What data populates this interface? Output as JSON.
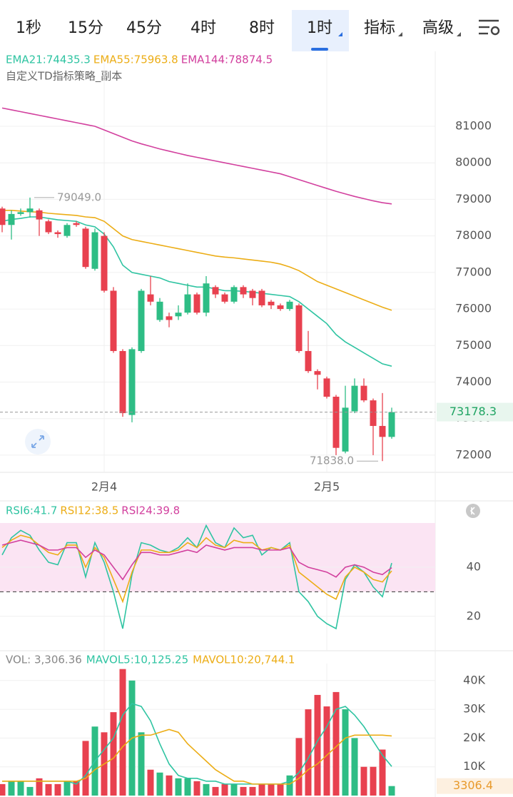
{
  "tabs": [
    "1秒",
    "15分",
    "45分",
    "4时",
    "8时",
    "1时",
    "指标",
    "高级"
  ],
  "active_tab": 5,
  "up_color": "#2ebd85",
  "down_color": "#e8414f",
  "main": {
    "subtitle": "自定义TD指标策略_副本",
    "categories": [
      null,
      null,
      null,
      null,
      null,
      null,
      null,
      null,
      null,
      null,
      null,
      "2月4",
      null,
      null,
      null,
      null,
      null,
      null,
      null,
      null,
      null,
      null,
      null,
      null,
      null,
      null,
      null,
      null,
      null,
      null,
      null,
      null,
      null,
      null,
      null,
      "2月5",
      null,
      null,
      null,
      null,
      null,
      null,
      null
    ],
    "open": [
      78750,
      78300,
      78600,
      78650,
      78700,
      78400,
      78100,
      78000,
      78350,
      78200,
      77100,
      78000,
      76500,
      74850,
      73100,
      74850,
      76400,
      75700,
      75800,
      75800,
      75900,
      76400,
      75900,
      76600,
      76400,
      76200,
      76600,
      76500,
      76500,
      76200,
      76100,
      76000,
      76100,
      74850,
      74300,
      74100,
      73600,
      72100,
      73200,
      73900,
      73500,
      72800,
      72500
    ],
    "high": [
      78800,
      78700,
      78750,
      79049,
      78750,
      78450,
      78150,
      78350,
      78400,
      78250,
      78200,
      78100,
      76600,
      74900,
      74950,
      76550,
      76900,
      76300,
      75900,
      76100,
      76700,
      76450,
      76900,
      76650,
      76450,
      76650,
      76650,
      76550,
      76550,
      76250,
      76150,
      76250,
      76150,
      75400,
      74350,
      74150,
      73650,
      73900,
      74100,
      74100,
      73550,
      73700,
      73300
    ],
    "low": [
      78100,
      77900,
      78550,
      78500,
      78000,
      78050,
      77950,
      77950,
      78250,
      77100,
      77050,
      76450,
      74800,
      73050,
      72900,
      74800,
      76100,
      75650,
      75500,
      75700,
      75850,
      75850,
      75800,
      76300,
      76150,
      76150,
      76300,
      76100,
      76050,
      76000,
      75950,
      75950,
      74800,
      74250,
      73800,
      73550,
      72000,
      72050,
      73150,
      73450,
      72000,
      71838,
      72450
    ],
    "close": [
      78300,
      78600,
      78650,
      78750,
      78450,
      78100,
      78050,
      78300,
      78300,
      77150,
      78100,
      76500,
      74850,
      73150,
      74900,
      76500,
      76200,
      76200,
      75700,
      75900,
      76400,
      75900,
      76700,
      76400,
      76200,
      76600,
      76400,
      76300,
      76100,
      76100,
      76000,
      76200,
      74850,
      74300,
      74200,
      73600,
      72200,
      73300,
      73900,
      73500,
      72800,
      72500,
      73178.3
    ],
    "series": [
      {
        "name": "EMA21:74435.3",
        "color": "#2fc4a2",
        "values": [
          78400,
          78450,
          78480,
          78520,
          78520,
          78480,
          78440,
          78420,
          78400,
          78300,
          78250,
          78050,
          77700,
          77200,
          77000,
          76950,
          76900,
          76850,
          76750,
          76700,
          76650,
          76600,
          76600,
          76550,
          76500,
          76500,
          76480,
          76460,
          76430,
          76400,
          76370,
          76340,
          76200,
          76000,
          75800,
          75600,
          75300,
          75100,
          74950,
          74800,
          74650,
          74500,
          74435.3
        ]
      },
      {
        "name": "EMA55:75963.8",
        "color": "#ecad16",
        "values": [
          78700,
          78700,
          78680,
          78660,
          78650,
          78620,
          78600,
          78580,
          78560,
          78520,
          78500,
          78400,
          78200,
          78000,
          77900,
          77850,
          77800,
          77750,
          77700,
          77650,
          77600,
          77550,
          77500,
          77450,
          77420,
          77400,
          77370,
          77340,
          77310,
          77280,
          77230,
          77150,
          77050,
          76900,
          76750,
          76650,
          76550,
          76450,
          76350,
          76250,
          76150,
          76050,
          75963.8
        ]
      },
      {
        "name": "EMA144:78874.5",
        "color": "#d2409e",
        "values": [
          81500,
          81450,
          81400,
          81350,
          81300,
          81250,
          81200,
          81150,
          81100,
          81050,
          81000,
          80900,
          80800,
          80700,
          80600,
          80520,
          80450,
          80380,
          80320,
          80260,
          80200,
          80150,
          80100,
          80050,
          80000,
          79950,
          79900,
          79850,
          79800,
          79750,
          79700,
          79620,
          79540,
          79460,
          79380,
          79300,
          79220,
          79150,
          79080,
          79020,
          78960,
          78910,
          78874.5
        ]
      }
    ],
    "ylim": [
      71530,
      83050
    ],
    "yticks": [
      72000,
      73000,
      74000,
      75000,
      76000,
      77000,
      78000,
      79000,
      80000,
      81000
    ],
    "last": 73178.3,
    "high_label": "79049.0",
    "low_label": "71838.0"
  },
  "rsi": {
    "series": [
      {
        "name": "RSI6:41.7",
        "color": "#2fc4a2",
        "values": [
          45,
          52,
          55,
          53,
          47,
          42,
          41,
          50,
          50,
          36,
          50,
          42,
          30,
          15,
          37,
          50,
          49,
          47,
          46,
          48,
          52,
          48,
          57,
          50,
          48,
          56,
          52,
          53,
          45,
          48,
          47,
          50,
          30,
          26,
          20,
          17,
          15,
          35,
          41,
          38,
          32,
          28,
          41.7
        ]
      },
      {
        "name": "RSI12:38.5",
        "color": "#ecad16",
        "values": [
          48,
          51,
          53,
          52,
          49,
          46,
          45,
          49,
          49,
          40,
          48,
          44,
          35,
          26,
          38,
          47,
          47,
          46,
          46,
          47,
          50,
          48,
          52,
          49,
          48,
          51,
          50,
          50,
          47,
          48,
          47,
          49,
          38,
          35,
          32,
          29,
          27,
          36,
          40,
          38,
          35,
          34,
          38.5
        ]
      },
      {
        "name": "RSI24:39.8",
        "color": "#d2409e",
        "values": [
          49,
          50,
          51,
          50,
          49,
          47,
          47,
          48,
          48,
          44,
          47,
          45,
          40,
          35,
          41,
          46,
          46,
          45,
          45,
          46,
          47,
          46,
          49,
          48,
          47,
          48,
          48,
          48,
          47,
          47,
          47,
          48,
          42,
          40,
          39,
          38,
          36,
          40,
          41,
          40,
          38,
          37,
          39.8
        ]
      }
    ],
    "ylim": [
      6,
      58
    ],
    "yticks": [
      20,
      40
    ],
    "band": [
      30,
      70
    ],
    "level": 30
  },
  "volume": {
    "legend": "VOL: 3,306.36",
    "values": [
      4000,
      5000,
      5000,
      3000,
      6000,
      4000,
      4000,
      5000,
      5000,
      19000,
      24000,
      22000,
      29000,
      44000,
      40000,
      22000,
      9000,
      8000,
      7000,
      6000,
      6000,
      5000,
      4000,
      3000,
      4000,
      4000,
      3000,
      3000,
      4000,
      4000,
      4000,
      7000,
      20000,
      30000,
      35000,
      31000,
      36000,
      30000,
      20000,
      10000,
      10000,
      16000,
      3306.36
    ],
    "series": [
      {
        "name": "MAVOL5:10,125.25",
        "color": "#2fc4a2",
        "values": [
          5000,
          5000,
          5000,
          5000,
          5000,
          5000,
          5000,
          5000,
          4000,
          7000,
          12000,
          16000,
          20000,
          28000,
          32000,
          31000,
          26000,
          18000,
          11000,
          7000,
          6000,
          6000,
          5000,
          5000,
          4000,
          4000,
          4000,
          4000,
          4000,
          4000,
          4000,
          5000,
          8000,
          13000,
          19000,
          24000,
          30000,
          31000,
          28000,
          24000,
          19000,
          14000,
          10125.25
        ]
      },
      {
        "name": "MAVOL10:20,744.1",
        "color": "#ecad16",
        "values": [
          5000,
          5000,
          5000,
          5000,
          5000,
          5000,
          5000,
          5000,
          5000,
          6000,
          9000,
          11000,
          13000,
          17000,
          20000,
          21000,
          21000,
          22000,
          23000,
          22000,
          18000,
          15000,
          12000,
          9000,
          7000,
          5000,
          5000,
          4000,
          4000,
          4000,
          4000,
          4000,
          6000,
          9000,
          11000,
          14000,
          17000,
          20000,
          21000,
          21000,
          21000,
          21000,
          20744.1
        ]
      }
    ],
    "ylim": [
      0,
      45900
    ],
    "yticks": [
      {
        "value": 10000,
        "label": "10K"
      },
      {
        "value": 20000,
        "label": "20K"
      },
      {
        "value": 30000,
        "label": "30K"
      },
      {
        "value": 40000,
        "label": "40K"
      }
    ],
    "last_label": "3306.4"
  }
}
